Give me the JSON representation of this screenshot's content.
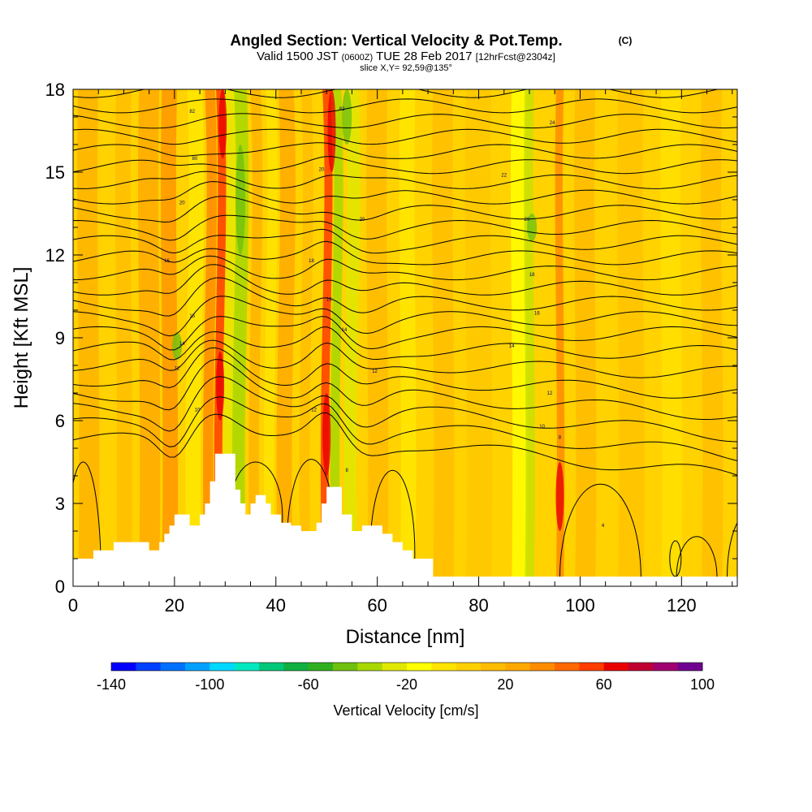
{
  "chart_data": {
    "type": "heatmap",
    "title": "Angled Section: Vertical Velocity & Pot.Temp.",
    "title_suffix": "(C)",
    "subtitle_valid": "Valid 1500 JST",
    "subtitle_utc": "(0600Z)",
    "subtitle_date": "TUE 28 Feb 2017",
    "subtitle_fcst": "[12hrFcst@2304z]",
    "slice_label": "slice X,Y= 92,59@135°",
    "xlabel": "Distance [nm]",
    "ylabel": "Height [Kft MSL]",
    "xlim": [
      0,
      131
    ],
    "ylim": [
      0,
      18
    ],
    "x_ticks": [
      0,
      20,
      40,
      60,
      80,
      100,
      120
    ],
    "y_ticks": [
      0,
      3,
      6,
      9,
      12,
      15,
      18
    ],
    "colorbar": {
      "label": "Vertical Velocity [cm/s]",
      "range": [
        -140,
        100
      ],
      "step": 10,
      "tick_values": [
        -140,
        -100,
        -60,
        -20,
        20,
        60,
        100
      ],
      "colors": [
        "#0000ff",
        "#0040ff",
        "#0070ff",
        "#00a0ff",
        "#00d8ff",
        "#00e8c0",
        "#00c878",
        "#10b040",
        "#30b020",
        "#70c010",
        "#a8d800",
        "#e0e800",
        "#ffff00",
        "#ffe400",
        "#ffd000",
        "#ffbc00",
        "#ffa800",
        "#ff8c00",
        "#ff6800",
        "#ff3c00",
        "#e80000",
        "#c00030",
        "#a00070",
        "#700090"
      ]
    },
    "terrain_kft": [
      [
        0,
        1.0
      ],
      [
        4,
        1.3
      ],
      [
        8,
        1.6
      ],
      [
        13,
        1.6
      ],
      [
        15,
        1.3
      ],
      [
        17,
        1.6
      ],
      [
        18,
        1.9
      ],
      [
        19,
        2.2
      ],
      [
        20,
        2.6
      ],
      [
        22,
        2.6
      ],
      [
        23,
        2.2
      ],
      [
        25,
        2.6
      ],
      [
        26,
        3.0
      ],
      [
        27,
        3.8
      ],
      [
        28,
        4.8
      ],
      [
        31,
        4.8
      ],
      [
        32,
        3.5
      ],
      [
        33,
        3.0
      ],
      [
        34,
        2.6
      ],
      [
        35,
        3.0
      ],
      [
        36,
        3.3
      ],
      [
        38,
        3.0
      ],
      [
        39,
        2.6
      ],
      [
        41,
        2.3
      ],
      [
        43,
        2.2
      ],
      [
        45,
        2.0
      ],
      [
        47,
        2.0
      ],
      [
        48,
        2.3
      ],
      [
        49,
        3.0
      ],
      [
        50,
        3.6
      ],
      [
        52,
        3.6
      ],
      [
        53,
        2.6
      ],
      [
        55,
        2.0
      ],
      [
        57,
        2.2
      ],
      [
        60,
        2.2
      ],
      [
        61,
        1.9
      ],
      [
        63,
        1.6
      ],
      [
        65,
        1.3
      ],
      [
        67,
        1.0
      ],
      [
        70,
        1.0
      ],
      [
        71,
        0.35
      ],
      [
        131,
        0.35
      ]
    ],
    "contour_labels": [
      {
        "x": 23.5,
        "y": 17.2,
        "text": "82"
      },
      {
        "x": 24,
        "y": 15.5,
        "text": "80"
      },
      {
        "x": 21.5,
        "y": 13.9,
        "text": "20"
      },
      {
        "x": 18.5,
        "y": 11.8,
        "text": "16"
      },
      {
        "x": 23.5,
        "y": 9.8,
        "text": "15"
      },
      {
        "x": 21.5,
        "y": 8.8,
        "text": "14"
      },
      {
        "x": 20.5,
        "y": 7.9,
        "text": "12"
      },
      {
        "x": 24.5,
        "y": 6.4,
        "text": "10"
      },
      {
        "x": 53,
        "y": 17.3,
        "text": "82"
      },
      {
        "x": 49,
        "y": 15.1,
        "text": "20"
      },
      {
        "x": 57,
        "y": 13.3,
        "text": "20"
      },
      {
        "x": 47,
        "y": 11.8,
        "text": "18"
      },
      {
        "x": 50.5,
        "y": 10.4,
        "text": "16"
      },
      {
        "x": 53.5,
        "y": 9.3,
        "text": "14"
      },
      {
        "x": 59.5,
        "y": 7.8,
        "text": "12"
      },
      {
        "x": 47.5,
        "y": 6.4,
        "text": "12"
      },
      {
        "x": 54,
        "y": 4.2,
        "text": "8"
      },
      {
        "x": 94.5,
        "y": 16.8,
        "text": "24"
      },
      {
        "x": 85,
        "y": 14.9,
        "text": "22"
      },
      {
        "x": 89.5,
        "y": 13.3,
        "text": "20"
      },
      {
        "x": 90.5,
        "y": 11.3,
        "text": "18"
      },
      {
        "x": 91.5,
        "y": 9.9,
        "text": "16"
      },
      {
        "x": 86.5,
        "y": 8.7,
        "text": "14"
      },
      {
        "x": 94,
        "y": 7.0,
        "text": "12"
      },
      {
        "x": 92.5,
        "y": 5.8,
        "text": "10"
      },
      {
        "x": 96,
        "y": 5.4,
        "text": "8"
      },
      {
        "x": 104.5,
        "y": 2.2,
        "text": "4"
      }
    ]
  }
}
